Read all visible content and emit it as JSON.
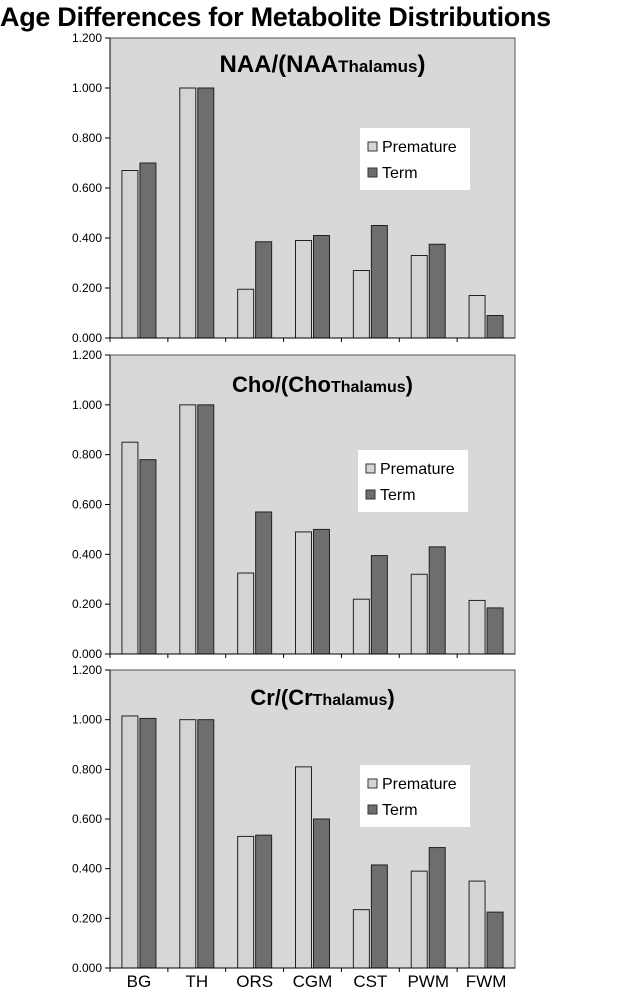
{
  "title": "Age Differences for Metabolite Distributions",
  "chart_data": [
    {
      "type": "bar",
      "title_main": "NAA/(NAA",
      "title_sub": "Thalamus",
      "title_end": ")",
      "categories": [
        "BG",
        "TH",
        "ORS",
        "CGM",
        "CST",
        "PWM",
        "FWM"
      ],
      "series": [
        {
          "name": "Premature",
          "values": [
            0.67,
            1.0,
            0.195,
            0.39,
            0.27,
            0.33,
            0.17
          ],
          "color": "#d4d4d4"
        },
        {
          "name": "Term",
          "values": [
            0.7,
            1.0,
            0.385,
            0.41,
            0.45,
            0.375,
            0.09
          ],
          "color": "#6e6e6e"
        }
      ],
      "ylim": [
        0,
        1.2
      ],
      "yticks": [
        "0.000",
        "0.200",
        "0.400",
        "0.600",
        "0.800",
        "1.000",
        "1.200"
      ],
      "show_x_labels": false,
      "legend_position": "right"
    },
    {
      "type": "bar",
      "title_main": "Cho/(Cho",
      "title_sub": "Thalamus",
      "title_end": ")",
      "categories": [
        "BG",
        "TH",
        "ORS",
        "CGM",
        "CST",
        "PWM",
        "FWM"
      ],
      "series": [
        {
          "name": "Premature",
          "values": [
            0.85,
            1.0,
            0.325,
            0.49,
            0.22,
            0.32,
            0.215
          ],
          "color": "#d4d4d4"
        },
        {
          "name": "Term",
          "values": [
            0.78,
            1.0,
            0.57,
            0.5,
            0.395,
            0.43,
            0.185
          ],
          "color": "#6e6e6e"
        }
      ],
      "ylim": [
        0,
        1.2
      ],
      "yticks": [
        "0.000",
        "0.200",
        "0.400",
        "0.600",
        "0.800",
        "1.000",
        "1.200"
      ],
      "show_x_labels": false,
      "legend_position": "right"
    },
    {
      "type": "bar",
      "title_main": "Cr/(Cr",
      "title_sub": "Thalamus",
      "title_end": ")",
      "categories": [
        "BG",
        "TH",
        "ORS",
        "CGM",
        "CST",
        "PWM",
        "FWM"
      ],
      "series": [
        {
          "name": "Premature",
          "values": [
            1.015,
            1.0,
            0.53,
            0.81,
            0.235,
            0.39,
            0.35
          ],
          "color": "#d4d4d4"
        },
        {
          "name": "Term",
          "values": [
            1.005,
            1.0,
            0.535,
            0.6,
            0.415,
            0.485,
            0.225
          ],
          "color": "#6e6e6e"
        }
      ],
      "ylim": [
        0,
        1.2
      ],
      "yticks": [
        "0.000",
        "0.200",
        "0.400",
        "0.600",
        "0.800",
        "1.000",
        "1.200"
      ],
      "show_x_labels": true,
      "legend_position": "right"
    }
  ]
}
